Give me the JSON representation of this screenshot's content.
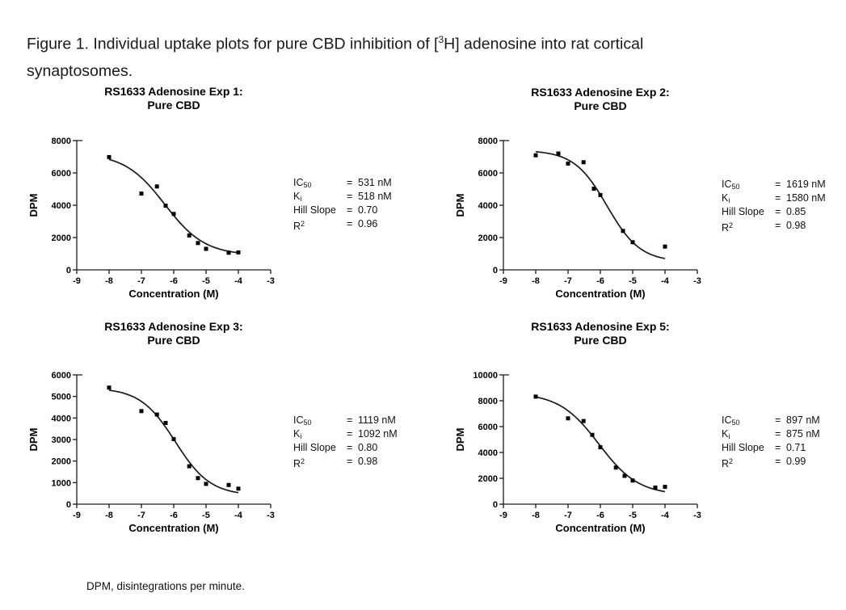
{
  "figure": {
    "caption_pre": "Figure 1. Individual uptake plots for pure CBD inhibition of [",
    "caption_sup": "3",
    "caption_mid": "H] adenosine into rat cortical",
    "caption_line2": "synaptosomes.",
    "footnote": "DPM, disintegrations per minute."
  },
  "stats_labels": {
    "eq": "=",
    "ic50_base": "IC",
    "ic50_sub": "50",
    "ki_base": "K",
    "ki_sub": "i",
    "hill": "Hill Slope",
    "r2_base": "R",
    "r2_sup": "2"
  },
  "chart_data": [
    {
      "type": "scatter",
      "title_line1": "RS1633 Adenosine Exp 1:",
      "title_line2": "Pure CBD",
      "xlabel": "Concentration (M)",
      "ylabel": "DPM",
      "xlim": [
        -9,
        -3
      ],
      "ylim": [
        0,
        8000
      ],
      "ytick_step": 2000,
      "xticks": [
        -9,
        -8,
        -7,
        -6,
        -5,
        -4,
        -3
      ],
      "points": {
        "x": [
          -8,
          -7,
          -6.52,
          -6.25,
          -6,
          -5.52,
          -5.25,
          -5,
          -4.3,
          -4
        ],
        "y": [
          6980,
          4720,
          5160,
          3970,
          3460,
          2130,
          1660,
          1300,
          1060,
          1080
        ]
      },
      "fit": {
        "top": 7200,
        "bottom": 900,
        "logIC50": -6.275,
        "hill": 0.7,
        "x_range": [
          -8,
          -4
        ]
      },
      "stats": {
        "ic50": "531 nM",
        "ki": "518 nM",
        "hill": "0.70",
        "r2": "0.96"
      }
    },
    {
      "type": "scatter",
      "title_line1": "RS1633 Adenosine Exp 2:",
      "title_line2": "Pure CBD",
      "xlabel": "Concentration (M)",
      "ylabel": "DPM",
      "xlim": [
        -9,
        -3
      ],
      "ylim": [
        0,
        8000
      ],
      "ytick_step": 2000,
      "xticks": [
        -9,
        -8,
        -7,
        -6,
        -5,
        -4,
        -3
      ],
      "points": {
        "x": [
          -8,
          -7.3,
          -7,
          -6.52,
          -6.2,
          -6,
          -5.3,
          -5,
          -4
        ],
        "y": [
          7090,
          7200,
          6580,
          6660,
          5020,
          4630,
          2410,
          1710,
          1440
        ]
      },
      "fit": {
        "top": 7400,
        "bottom": 500,
        "logIC50": -5.791,
        "hill": 0.85,
        "x_range": [
          -8,
          -4
        ]
      },
      "stats": {
        "ic50": "1619 nM",
        "ki": "1580 nM",
        "hill": "0.85",
        "r2": "0.98"
      }
    },
    {
      "type": "scatter",
      "title_line1": "RS1633 Adenosine Exp 3:",
      "title_line2": "Pure CBD",
      "xlabel": "Concentration (M)",
      "ylabel": "DPM",
      "xlim": [
        -9,
        -3
      ],
      "ylim": [
        0,
        6000
      ],
      "ytick_step": 1000,
      "xticks": [
        -9,
        -8,
        -7,
        -6,
        -5,
        -4,
        -3
      ],
      "points": {
        "x": [
          -8,
          -7,
          -6.52,
          -6.25,
          -6,
          -5.52,
          -5.25,
          -5,
          -4.3,
          -4
        ],
        "y": [
          5410,
          4320,
          4160,
          3770,
          3020,
          1760,
          1210,
          940,
          890,
          720
        ]
      },
      "fit": {
        "top": 5400,
        "bottom": 400,
        "logIC50": -5.951,
        "hill": 0.8,
        "x_range": [
          -8,
          -4
        ]
      },
      "stats": {
        "ic50": "1119 nM",
        "ki": "1092 nM",
        "hill": "0.80",
        "r2": "0.98"
      }
    },
    {
      "type": "scatter",
      "title_line1": "RS1633 Adenosine Exp 5:",
      "title_line2": "Pure CBD",
      "xlabel": "Concentration (M)",
      "ylabel": "DPM",
      "xlim": [
        -9,
        -3
      ],
      "ylim": [
        0,
        10000
      ],
      "ytick_step": 2000,
      "xticks": [
        -9,
        -8,
        -7,
        -6,
        -5,
        -4,
        -3
      ],
      "points": {
        "x": [
          -8,
          -7,
          -6.52,
          -6.25,
          -6,
          -5.52,
          -5.25,
          -5,
          -4.3,
          -4
        ],
        "y": [
          8320,
          6640,
          6430,
          5360,
          4400,
          2830,
          2190,
          1830,
          1280,
          1340
        ]
      },
      "fit": {
        "top": 8600,
        "bottom": 700,
        "logIC50": -6.047,
        "hill": 0.71,
        "x_range": [
          -8,
          -4
        ]
      },
      "stats": {
        "ic50": "897 nM",
        "ki": "875 nM",
        "hill": "0.71",
        "r2": "0.99"
      }
    }
  ]
}
